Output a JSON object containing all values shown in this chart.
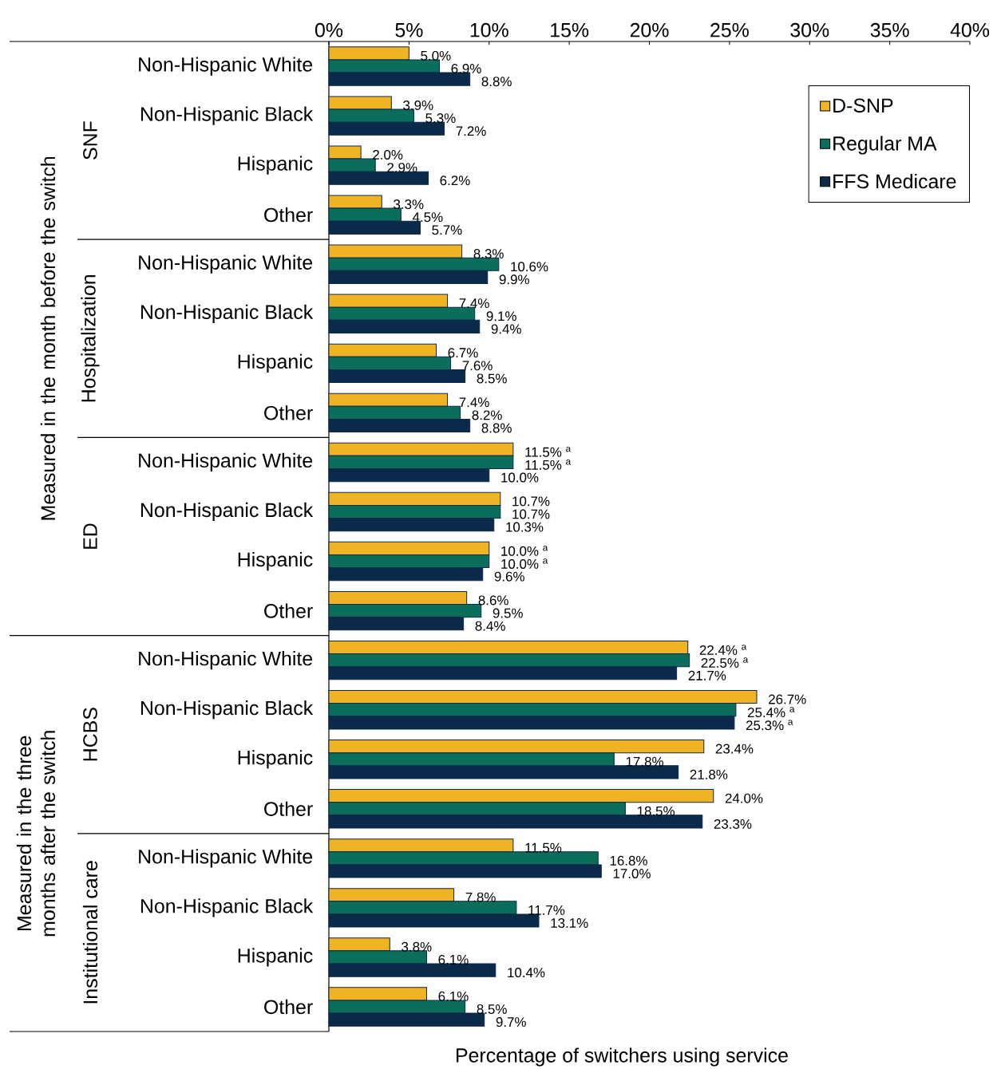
{
  "chart_data": {
    "type": "bar",
    "orientation": "horizontal",
    "xlabel": "Percentage of switchers using service",
    "categories": [
      "Non-Hispanic White",
      "Non-Hispanic Black",
      "Hispanic",
      "Other",
      "Non-Hispanic White",
      "Non-Hispanic Black",
      "Hispanic",
      "Other",
      "Non-Hispanic White",
      "Non-Hispanic Black",
      "Hispanic",
      "Other",
      "Non-Hispanic White",
      "Non-Hispanic Black",
      "Hispanic",
      "Other",
      "Non-Hispanic White",
      "Non-Hispanic Black",
      "Hispanic",
      "Other"
    ],
    "series": [
      {
        "name": "D-SNP",
        "color": "#f0b323",
        "values": [
          5.0,
          3.9,
          2.0,
          3.3,
          8.3,
          7.4,
          6.7,
          7.4,
          11.5,
          10.7,
          10.0,
          8.6,
          22.4,
          26.7,
          23.4,
          24.0,
          11.5,
          7.8,
          3.8,
          6.1
        ],
        "value_labels": [
          "5.0%",
          "3.9%",
          "2.0%",
          "3.3%",
          "8.3%",
          "7.4%",
          "6.7%",
          "7.4%",
          "11.5% $^{a}$",
          "10.7%",
          "10.0% $^{a}$",
          "8.6%",
          "22.4% $^{a}$",
          "26.7%",
          "23.4%",
          "24.0%",
          "11.5%",
          "7.8%",
          "3.8%",
          "6.1%"
        ]
      },
      {
        "name": "Regular MA",
        "color": "#0a6e5a",
        "values": [
          6.9,
          5.3,
          2.9,
          4.5,
          10.6,
          9.1,
          7.6,
          8.2,
          11.5,
          10.7,
          10.0,
          9.5,
          22.5,
          25.4,
          17.8,
          18.5,
          16.8,
          11.7,
          6.1,
          8.5
        ],
        "value_labels": [
          "6.9%",
          "5.3%",
          "2.9%",
          "4.5%",
          "10.6%",
          "9.1%",
          "7.6%",
          "8.2%",
          "11.5% $^{a}$",
          "10.7%",
          "10.0% $^{a}$",
          "9.5%",
          "22.5% $^{a}$",
          "25.4% $^{a}$",
          "17.8%",
          "18.5%",
          "16.8%",
          "11.7%",
          "6.1%",
          "8.5%"
        ]
      },
      {
        "name": "FFS Medicare",
        "color": "#0b2a4a",
        "values": [
          8.8,
          7.2,
          6.2,
          5.7,
          9.9,
          9.4,
          8.5,
          8.8,
          10.0,
          10.3,
          9.6,
          8.4,
          21.7,
          25.3,
          21.8,
          23.3,
          17.0,
          13.1,
          10.4,
          9.7
        ],
        "value_labels": [
          "8.8%",
          "7.2%",
          "6.2%",
          "5.7%",
          "9.9%",
          "9.4%",
          "8.5%",
          "8.8%",
          "10.0%",
          "10.3%",
          "9.6%",
          "8.4%",
          "21.7%",
          "25.3% $^{a}$",
          "21.8%",
          "23.3%",
          "17.0%",
          "13.1%",
          "10.4%",
          "9.7%"
        ]
      }
    ],
    "xlim": [
      0,
      40
    ],
    "xticks": [
      {
        "value": 0,
        "label": "0%"
      },
      {
        "value": 5,
        "label": "5%"
      },
      {
        "value": 10,
        "label": "10%"
      },
      {
        "value": 15,
        "label": "15%"
      },
      {
        "value": 20,
        "label": "20%"
      },
      {
        "value": 25,
        "label": "25%"
      },
      {
        "value": 30,
        "label": "30%"
      },
      {
        "value": 35,
        "label": "35%"
      },
      {
        "value": 40,
        "label": "40%"
      }
    ],
    "legend": "top right",
    "annotations": [
      "SNF",
      "Hospitalization",
      "ED",
      "HCBS",
      "Institutional care",
      "Measured in the month before the switch",
      "Measured in the three months after the switch"
    ]
  }
}
